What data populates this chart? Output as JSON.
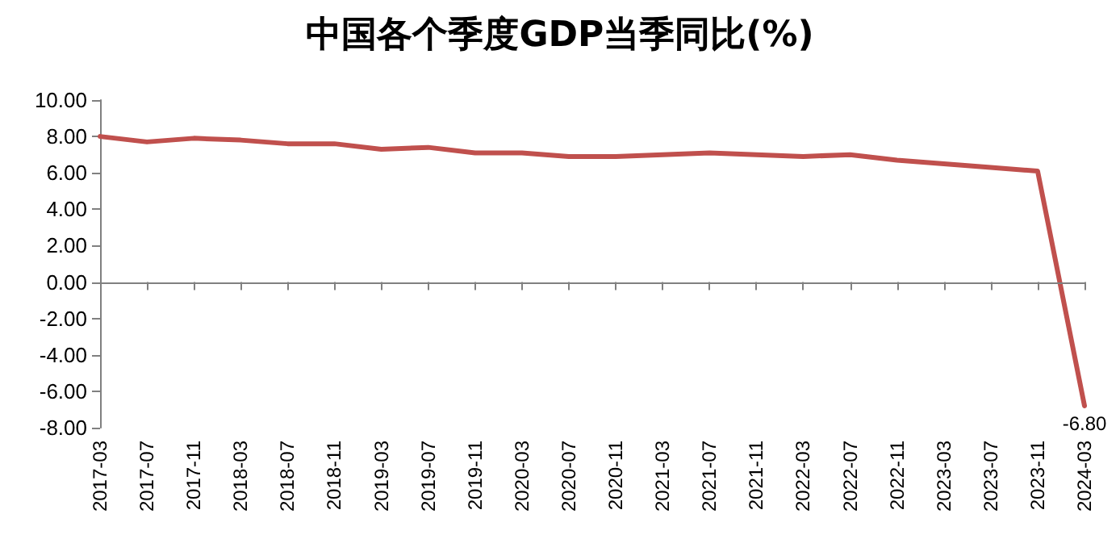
{
  "chart_data": {
    "type": "line",
    "title": "中国各个季度GDP当季同比(%)",
    "categories": [
      "2017-03",
      "2017-07",
      "2017-11",
      "2018-03",
      "2018-07",
      "2018-11",
      "2019-03",
      "2019-07",
      "2019-11",
      "2020-03",
      "2020-07",
      "2020-11",
      "2021-03",
      "2021-07",
      "2021-11",
      "2022-03",
      "2022-07",
      "2022-11",
      "2023-03",
      "2023-07",
      "2023-11",
      "2024-03"
    ],
    "series": [
      {
        "color": "#c0504d",
        "values": [
          8.0,
          7.7,
          7.9,
          7.8,
          7.6,
          7.6,
          7.3,
          7.4,
          7.1,
          7.1,
          6.9,
          6.9,
          7.0,
          7.1,
          7.0,
          6.9,
          7.0,
          6.7,
          6.5,
          6.3,
          6.1,
          -6.8
        ],
        "value_labels": [
          null,
          null,
          null,
          null,
          null,
          null,
          null,
          null,
          null,
          null,
          null,
          null,
          null,
          null,
          null,
          null,
          null,
          null,
          null,
          null,
          null,
          "-6.80"
        ]
      }
    ],
    "ylim": [
      -8,
      10
    ],
    "yticks": [
      {
        "value": -8,
        "label": "-8.00"
      },
      {
        "value": -6,
        "label": "-6.00"
      },
      {
        "value": -4,
        "label": "-4.00"
      },
      {
        "value": -2,
        "label": "-2.00"
      },
      {
        "value": 0,
        "label": "0.00"
      },
      {
        "value": 2,
        "label": "2.00"
      },
      {
        "value": 4,
        "label": "4.00"
      },
      {
        "value": 6,
        "label": "6.00"
      },
      {
        "value": 8,
        "label": "8.00"
      },
      {
        "value": 10,
        "label": "10.00"
      }
    ],
    "ref_lines": [
      {
        "axis": "y",
        "value": 0,
        "color": "#808080"
      }
    ],
    "grid": false,
    "marker": "none",
    "line_style": "solid"
  }
}
